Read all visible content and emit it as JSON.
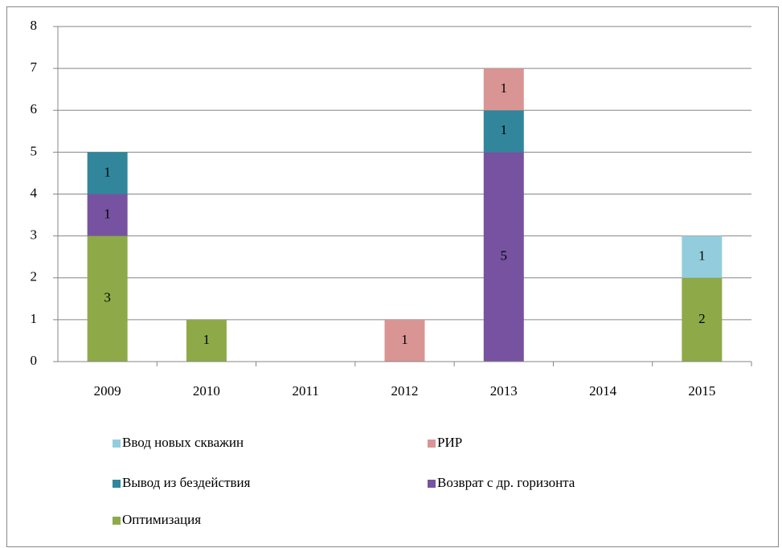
{
  "chart_data": {
    "type": "stacked_bar",
    "categories": [
      "2009",
      "2010",
      "2011",
      "2012",
      "2013",
      "2014",
      "2015"
    ],
    "series": [
      {
        "name": "Оптимизация",
        "color": "#8eaa48",
        "values": [
          3,
          1,
          0,
          0,
          0,
          0,
          2
        ]
      },
      {
        "name": "Возврат с др. горизонта",
        "color": "#7652a0",
        "values": [
          1,
          0,
          0,
          0,
          5,
          0,
          0
        ]
      },
      {
        "name": "Вывод из бездействия",
        "color": "#31869b",
        "values": [
          1,
          0,
          0,
          0,
          1,
          0,
          0
        ]
      },
      {
        "name": "РИР",
        "color": "#d99594",
        "values": [
          0,
          0,
          0,
          1,
          1,
          0,
          0
        ]
      },
      {
        "name": "Ввод новых скважин",
        "color": "#93cddd",
        "values": [
          0,
          0,
          0,
          0,
          0,
          0,
          1
        ]
      }
    ],
    "ylim": [
      0,
      8
    ],
    "yticks": [
      0,
      1,
      2,
      3,
      4,
      5,
      6,
      7,
      8
    ],
    "grid": true,
    "legend": "bottom"
  }
}
